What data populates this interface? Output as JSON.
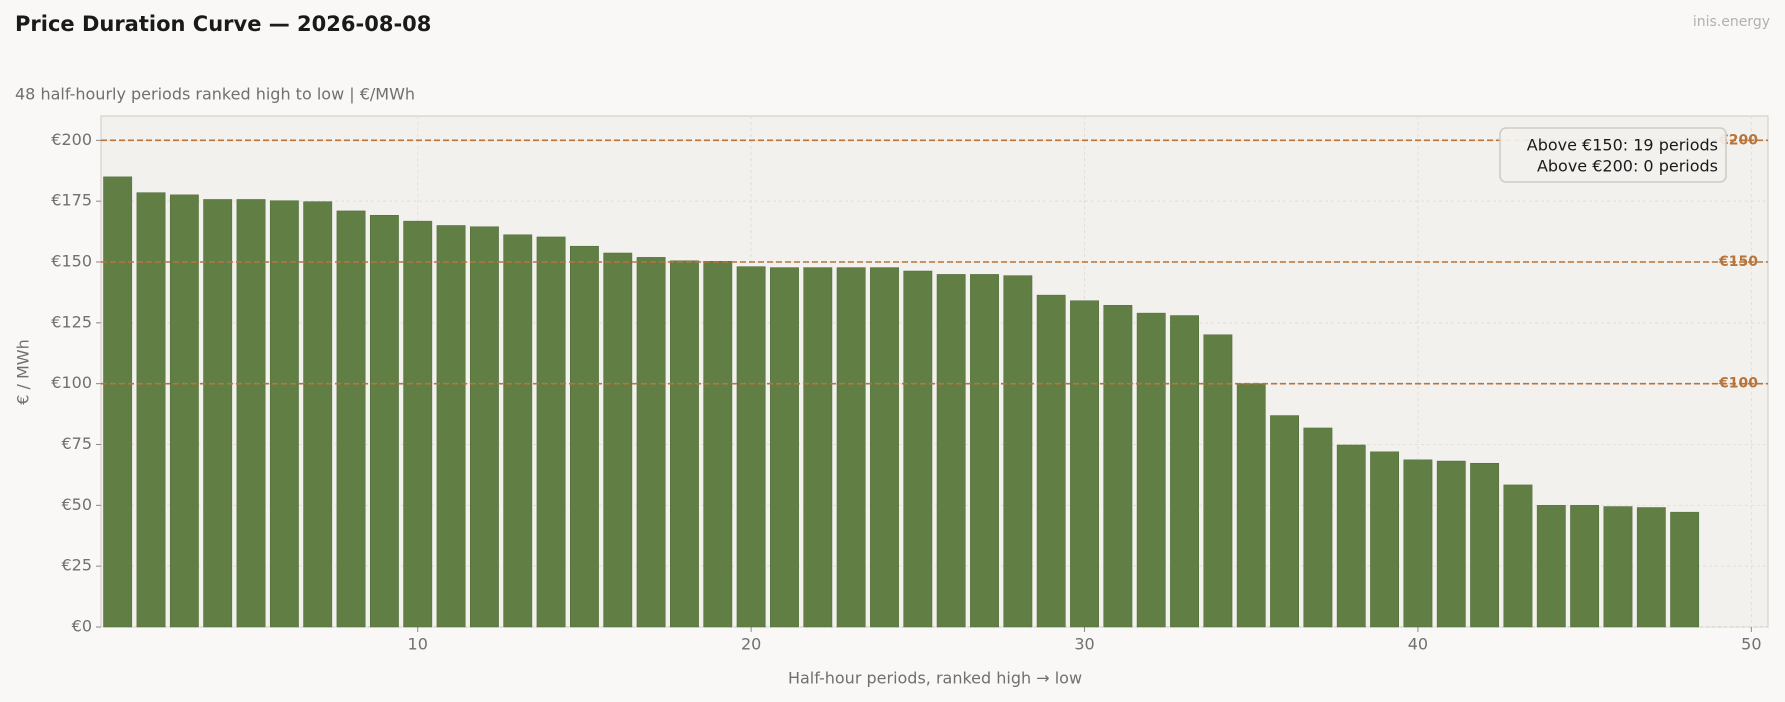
{
  "chart_data": {
    "type": "bar",
    "title": "Price Duration Curve — 2026-08-08",
    "subtitle": "48 half-hourly periods ranked high to low  |  €/MWh",
    "brand": "inis.energy",
    "x_label": "Half-hour periods, ranked high → low",
    "y_label": "€ / MWh",
    "x": [
      1,
      2,
      3,
      4,
      5,
      6,
      7,
      8,
      9,
      10,
      11,
      12,
      13,
      14,
      15,
      16,
      17,
      18,
      19,
      20,
      21,
      22,
      23,
      24,
      25,
      26,
      27,
      28,
      29,
      30,
      31,
      32,
      33,
      34,
      35,
      36,
      37,
      38,
      39,
      40,
      41,
      42,
      43,
      44,
      45,
      46,
      47,
      48
    ],
    "values": [
      185,
      178.5,
      177.6,
      175.7,
      175.7,
      175.2,
      174.8,
      171,
      169.2,
      166.8,
      165,
      164.5,
      161.2,
      160.3,
      156.5,
      153.7,
      151.9,
      150.5,
      150.3,
      148.1,
      147.7,
      147.7,
      147.7,
      147.7,
      146.3,
      144.9,
      144.9,
      144.4,
      136.4,
      134.1,
      132.2,
      129,
      128,
      120.1,
      100,
      86.9,
      81.8,
      74.8,
      72,
      68.7,
      68.2,
      67.3,
      58.4,
      50,
      50,
      49.5,
      49.1,
      47.2
    ],
    "color": "#617f45",
    "xlim": [
      0.5,
      50.5
    ],
    "ylim": [
      0,
      210
    ],
    "xticks": [
      10,
      20,
      30,
      40,
      50
    ],
    "yticks": [
      {
        "value": 0,
        "label": "€0"
      },
      {
        "value": 25,
        "label": "€25"
      },
      {
        "value": 50,
        "label": "€50"
      },
      {
        "value": 75,
        "label": "€75"
      },
      {
        "value": 100,
        "label": "€100"
      },
      {
        "value": 125,
        "label": "€125"
      },
      {
        "value": 150,
        "label": "€150"
      },
      {
        "value": 175,
        "label": "€175"
      },
      {
        "value": 200,
        "label": "€200"
      }
    ],
    "thresholds": [
      {
        "value": 100,
        "label": "€100"
      },
      {
        "value": 150,
        "label": "€150"
      },
      {
        "value": 200,
        "label": "€200"
      }
    ],
    "threshold_color": "#b8743a",
    "annotations": [
      "Above €150: 19 periods",
      "Above €200: 0 periods"
    ],
    "grid": true
  }
}
